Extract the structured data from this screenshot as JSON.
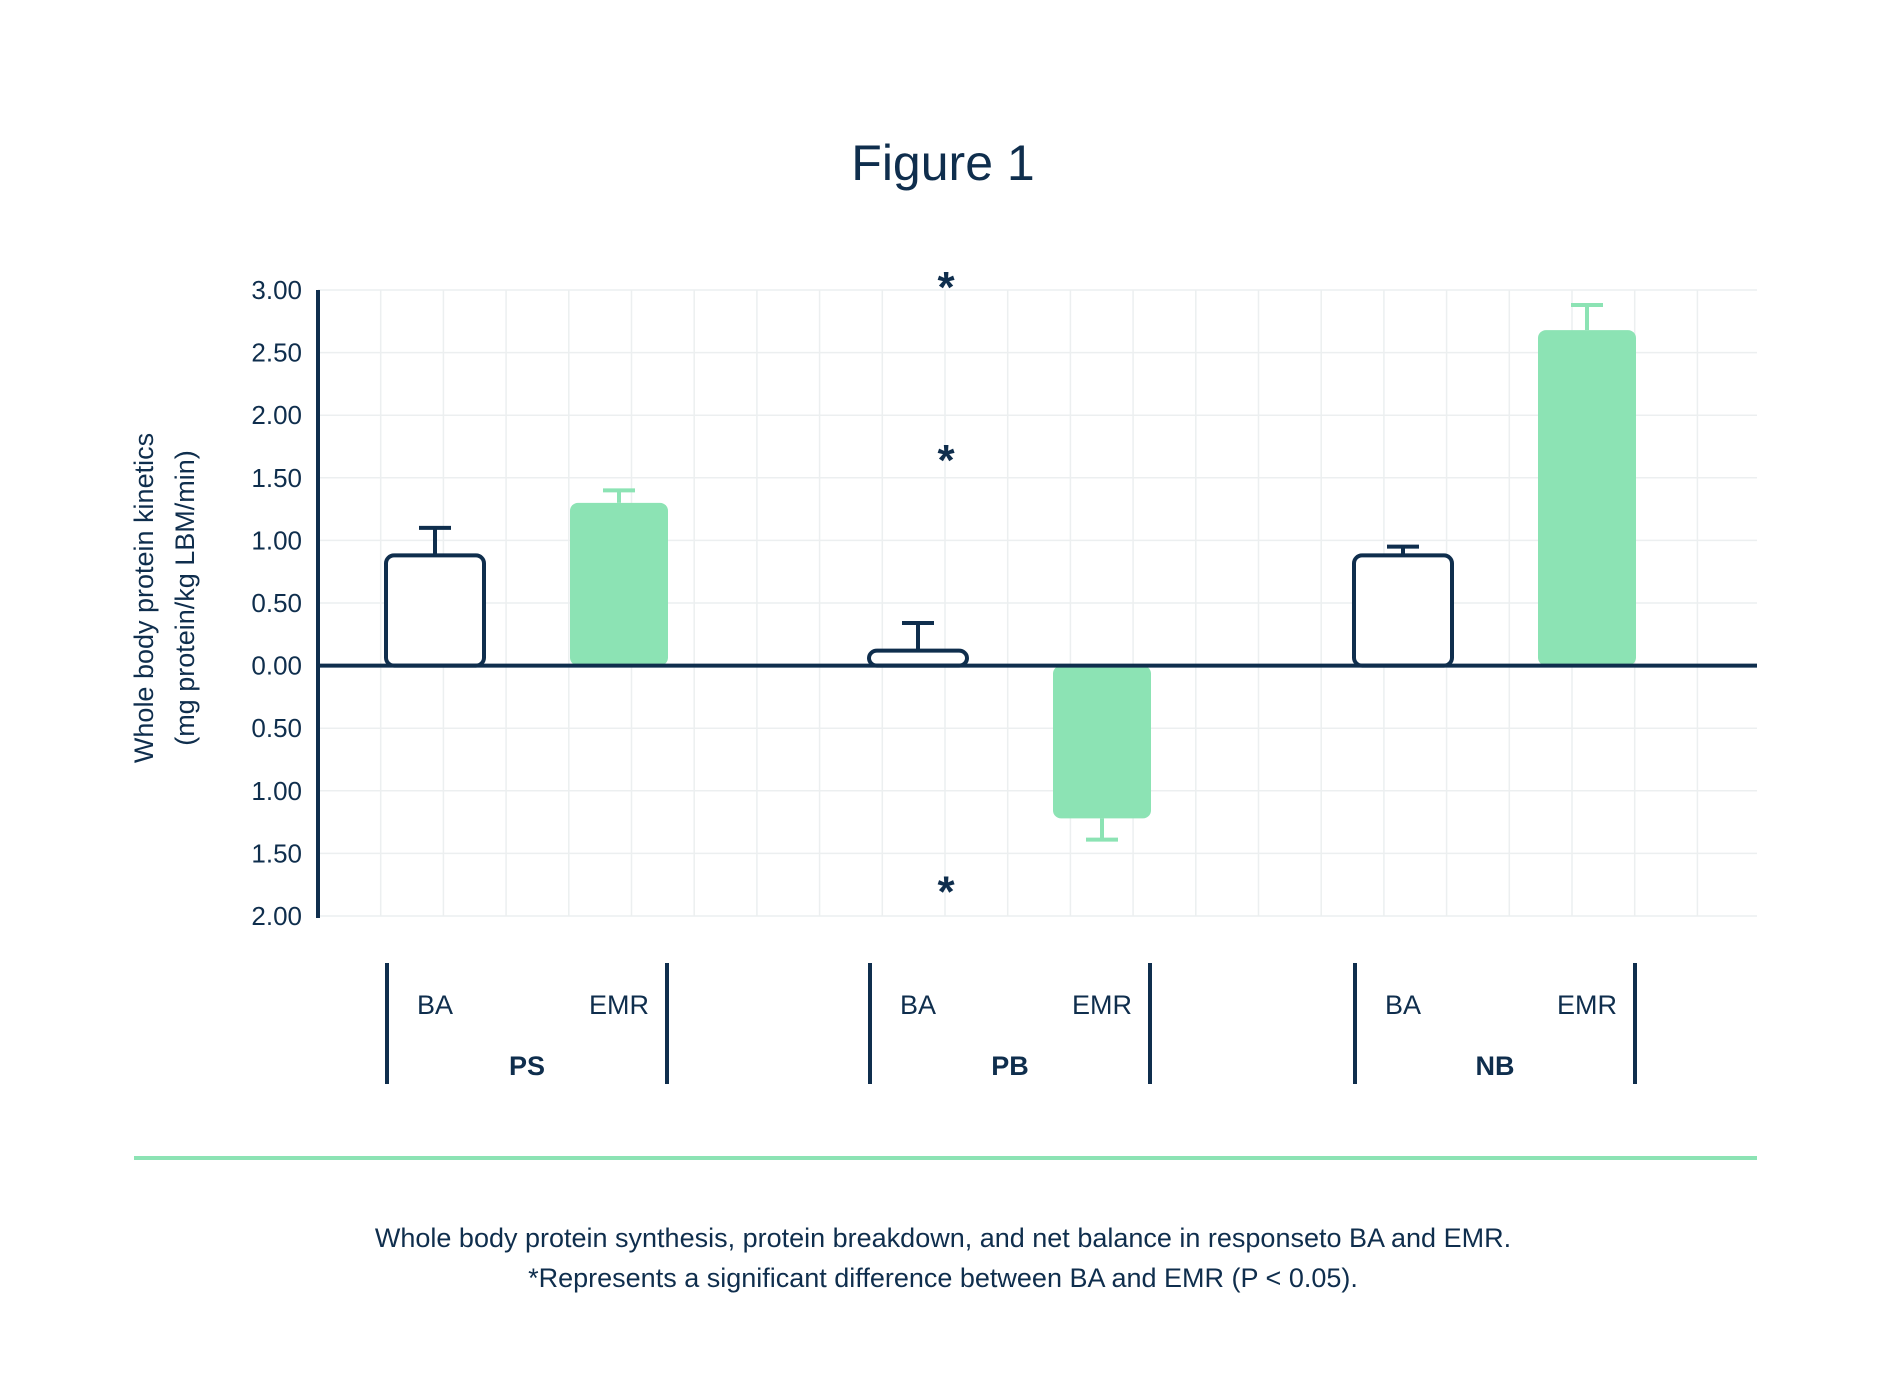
{
  "chart_data": {
    "type": "bar",
    "title": "Figure 1",
    "ylabel_line1": "Whole body protein kinetics",
    "ylabel_line2": "(mg protein/kg LBM/min)",
    "ylim": [
      -2.0,
      3.0
    ],
    "yticks": [
      {
        "value": 3.0,
        "label": "3.00"
      },
      {
        "value": 2.5,
        "label": "2.50"
      },
      {
        "value": 2.0,
        "label": "2.00"
      },
      {
        "value": 1.5,
        "label": "1.50"
      },
      {
        "value": 1.0,
        "label": "1.00"
      },
      {
        "value": 0.5,
        "label": "0.50"
      },
      {
        "value": 0.0,
        "label": "0.00"
      },
      {
        "value": -0.5,
        "label": "0.50"
      },
      {
        "value": -1.0,
        "label": "1.00"
      },
      {
        "value": -1.5,
        "label": "1.50"
      },
      {
        "value": -2.0,
        "label": "2.00"
      }
    ],
    "grid": true,
    "series_names": [
      "BA",
      "EMR"
    ],
    "groups": [
      {
        "name": "PS",
        "labels": [
          "BA",
          "EMR"
        ],
        "values": [
          0.88,
          1.3
        ],
        "error": [
          0.22,
          0.1
        ]
      },
      {
        "name": "PB",
        "labels": [
          "BA",
          "EMR"
        ],
        "values": [
          0.12,
          -1.22
        ],
        "error": [
          0.22,
          0.17
        ]
      },
      {
        "name": "NB",
        "labels": [
          "BA",
          "EMR"
        ],
        "values": [
          0.88,
          2.68
        ],
        "error": [
          0.07,
          0.2
        ]
      }
    ],
    "significance_markers": [
      {
        "symbol": "*",
        "value": 3.08
      },
      {
        "symbol": "*",
        "value": 1.7
      },
      {
        "symbol": "*",
        "value": -1.75
      }
    ],
    "colors": {
      "ba_outline": "#0f2e4d",
      "ba_fill": "#ffffff",
      "emr_fill": "#8ce3b4",
      "axis": "#0f2e4d",
      "grid": "#eceff0",
      "divider": "#8ce3b4"
    }
  },
  "caption": {
    "line1": "Whole body protein synthesis, protein breakdown, and net balance in responseto BA and EMR.",
    "line2": "*Represents a significant difference between BA and EMR (P < 0.05)."
  }
}
